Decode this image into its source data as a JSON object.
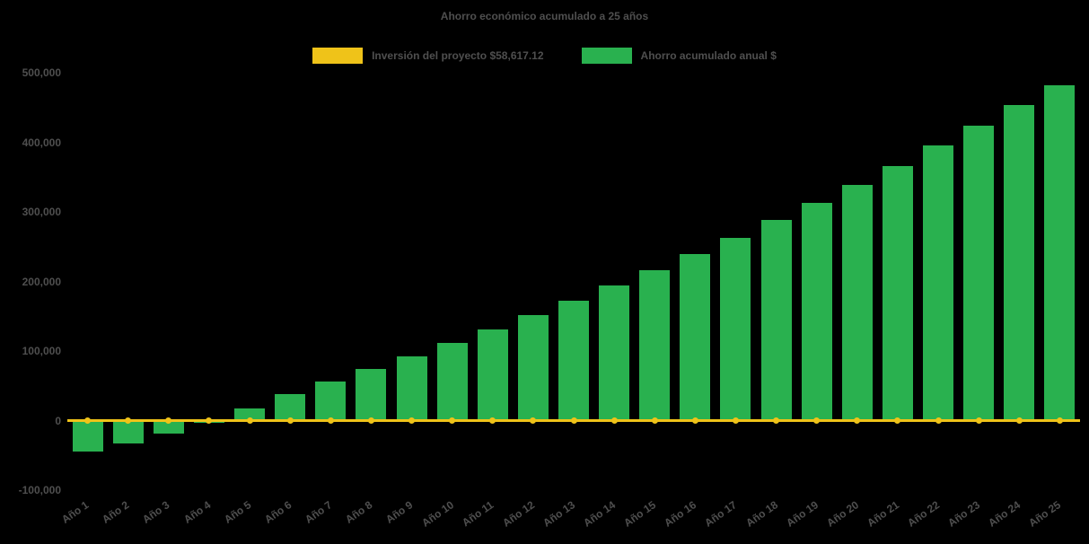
{
  "chart_data": {
    "type": "bar",
    "title": "Ahorro económico acumulado a 25 años",
    "categories": [
      "Año 1",
      "Año 2",
      "Año 3",
      "Año 4",
      "Año 5",
      "Año 6",
      "Año 7",
      "Año 8",
      "Año 9",
      "Año 10",
      "Año 11",
      "Año 12",
      "Año 13",
      "Año 14",
      "Año 15",
      "Año 16",
      "Año 17",
      "Año 18",
      "Año 19",
      "Año 20",
      "Año 21",
      "Año 22",
      "Año 23",
      "Año 24",
      "Año 25"
    ],
    "series": [
      {
        "name": "Inversión del proyecto $58,617.12",
        "type": "line",
        "color": "#EFC319",
        "values": [
          0,
          0,
          0,
          0,
          0,
          0,
          0,
          0,
          0,
          0,
          0,
          0,
          0,
          0,
          0,
          0,
          0,
          0,
          0,
          0,
          0,
          0,
          0,
          0,
          0
        ]
      },
      {
        "name": "Ahorro acumulado anual $",
        "type": "bar",
        "color": "#29B14F",
        "values": [
          -45000,
          -33000,
          -19000,
          -3000,
          17000,
          38000,
          56000,
          74000,
          92000,
          111000,
          131000,
          152000,
          172000,
          194000,
          216000,
          239000,
          263000,
          288000,
          313000,
          339000,
          366000,
          395000,
          424000,
          453000,
          482000
        ]
      }
    ],
    "ylim": [
      -100000,
      500000
    ],
    "yticks": [
      -100000,
      0,
      100000,
      200000,
      300000,
      400000,
      500000
    ],
    "grid": false,
    "legend_position": "top"
  },
  "colors": {
    "background": "#000000",
    "text": "#4F4F4F",
    "investment_line": "#EFC319",
    "savings_bar": "#29B14F"
  }
}
